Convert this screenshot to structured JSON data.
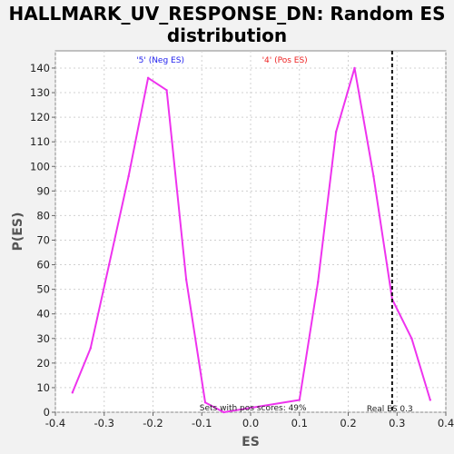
{
  "chart_data": {
    "type": "line",
    "title_line1": "HALLMARK_UV_RESPONSE_DN: Random ES",
    "title_line2": "distribution",
    "xlabel": "ES",
    "ylabel": "P(ES)",
    "xlim": [
      -0.4,
      0.4
    ],
    "ylim": [
      0,
      147
    ],
    "xticks": [
      "-0.4",
      "-0.3",
      "-0.2",
      "-0.1",
      "0.0",
      "0.1",
      "0.2",
      "0.3",
      "0.4"
    ],
    "yticks": [
      0,
      10,
      20,
      30,
      40,
      50,
      60,
      70,
      80,
      90,
      100,
      110,
      120,
      130,
      140
    ],
    "grid": true,
    "series": [
      {
        "color": "#ee33ee",
        "x": [
          -0.365,
          -0.328,
          -0.29,
          -0.25,
          -0.21,
          -0.172,
          -0.132,
          -0.093,
          -0.055,
          0.1,
          0.138,
          0.175,
          0.213,
          0.252,
          0.29,
          0.33,
          0.368
        ],
        "y": [
          8,
          26,
          60,
          96,
          136,
          131,
          54,
          4,
          0,
          5,
          53,
          114,
          140,
          96,
          46,
          30,
          5
        ]
      }
    ],
    "legend": [
      {
        "label": "'5' (Neg ES)",
        "color": "#2222ee"
      },
      {
        "label": "'4' (Pos ES)",
        "color": "#ee2222"
      }
    ],
    "real_es": {
      "value": 0.29,
      "label": "Real ES 0.3"
    },
    "annotation": "Sets with pos scores: 49%"
  }
}
